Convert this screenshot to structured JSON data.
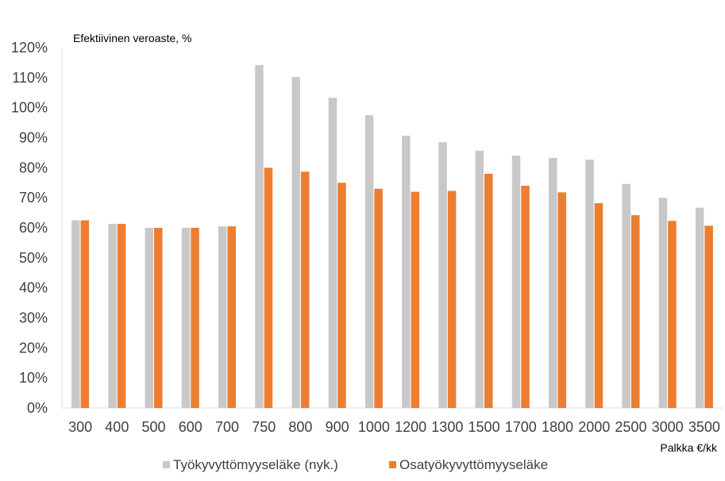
{
  "chart_data": {
    "type": "bar",
    "ylabel": "Efektiivinen veroaste, %",
    "xlabel": "Palkka €/kk",
    "categories": [
      "300",
      "400",
      "500",
      "600",
      "700",
      "750",
      "800",
      "900",
      "1000",
      "1200",
      "1300",
      "1500",
      "1700",
      "1800",
      "2000",
      "2500",
      "3000",
      "3500"
    ],
    "ylim": [
      0,
      120
    ],
    "yticks": [
      0,
      10,
      20,
      30,
      40,
      50,
      60,
      70,
      80,
      90,
      100,
      110,
      120
    ],
    "ytick_suffix": "%",
    "grid": false,
    "legend_position": "bottom",
    "series": [
      {
        "name": "Työkyvyttömyyseläke (nyk.)",
        "color": "#c8c8c8",
        "values": [
          62.5,
          61.3,
          60.0,
          60.0,
          60.5,
          114.2,
          110.2,
          103.3,
          97.5,
          90.7,
          88.5,
          85.7,
          84.0,
          83.3,
          82.7,
          74.6,
          70.0,
          66.7
        ]
      },
      {
        "name": "Osatyökyvyttömyyseläke",
        "color": "#ed7d31",
        "values": [
          62.5,
          61.3,
          60.0,
          60.0,
          60.5,
          80.0,
          78.7,
          75.0,
          73.0,
          72.0,
          72.3,
          78.0,
          74.0,
          71.8,
          68.2,
          64.2,
          62.3,
          60.7
        ]
      }
    ]
  }
}
